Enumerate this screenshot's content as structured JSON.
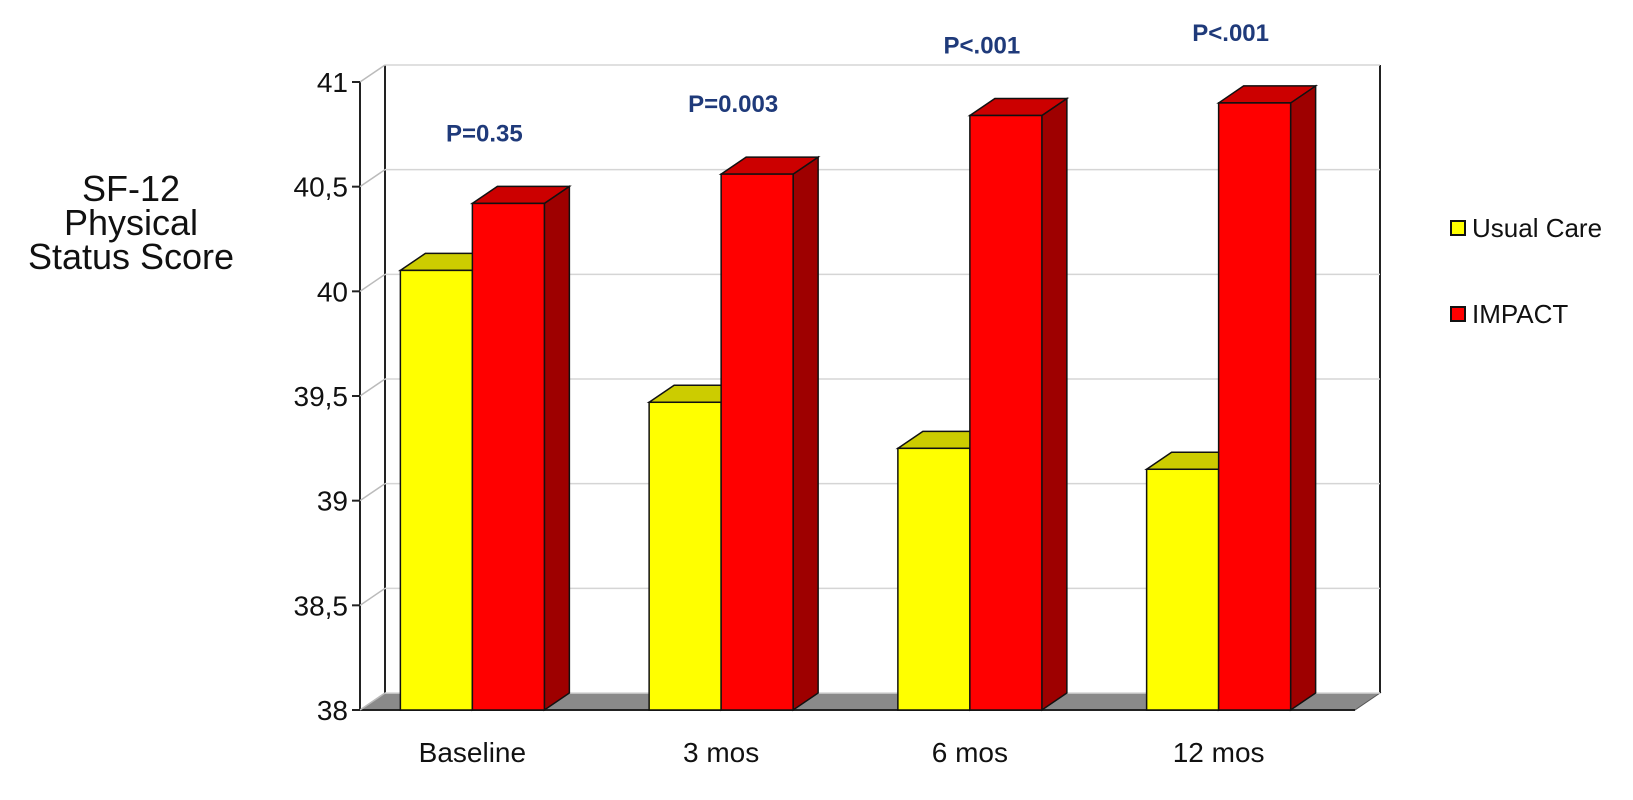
{
  "chart_data": {
    "type": "bar",
    "categories": [
      "Baseline",
      "3 mos",
      "6 mos",
      "12 mos"
    ],
    "series": [
      {
        "name": "Usual Care",
        "values": [
          40.1,
          39.47,
          39.25,
          39.15
        ],
        "color": "#ffff00"
      },
      {
        "name": "IMPACT",
        "values": [
          40.42,
          40.56,
          40.84,
          40.9
        ],
        "color": "#ff0000"
      }
    ],
    "ylabel_lines": [
      "SF-12",
      "Physical",
      "Status Score"
    ],
    "yticks": [
      "38",
      "38,5",
      "39",
      "39,5",
      "40",
      "40,5",
      "41"
    ],
    "ylim": [
      38,
      41
    ],
    "annotations": [
      "P=0.35",
      "P=0.003",
      "P<.001",
      "P<.001"
    ],
    "annotation_color": "#1f3a7a",
    "legend_position": "right",
    "grid": true
  }
}
